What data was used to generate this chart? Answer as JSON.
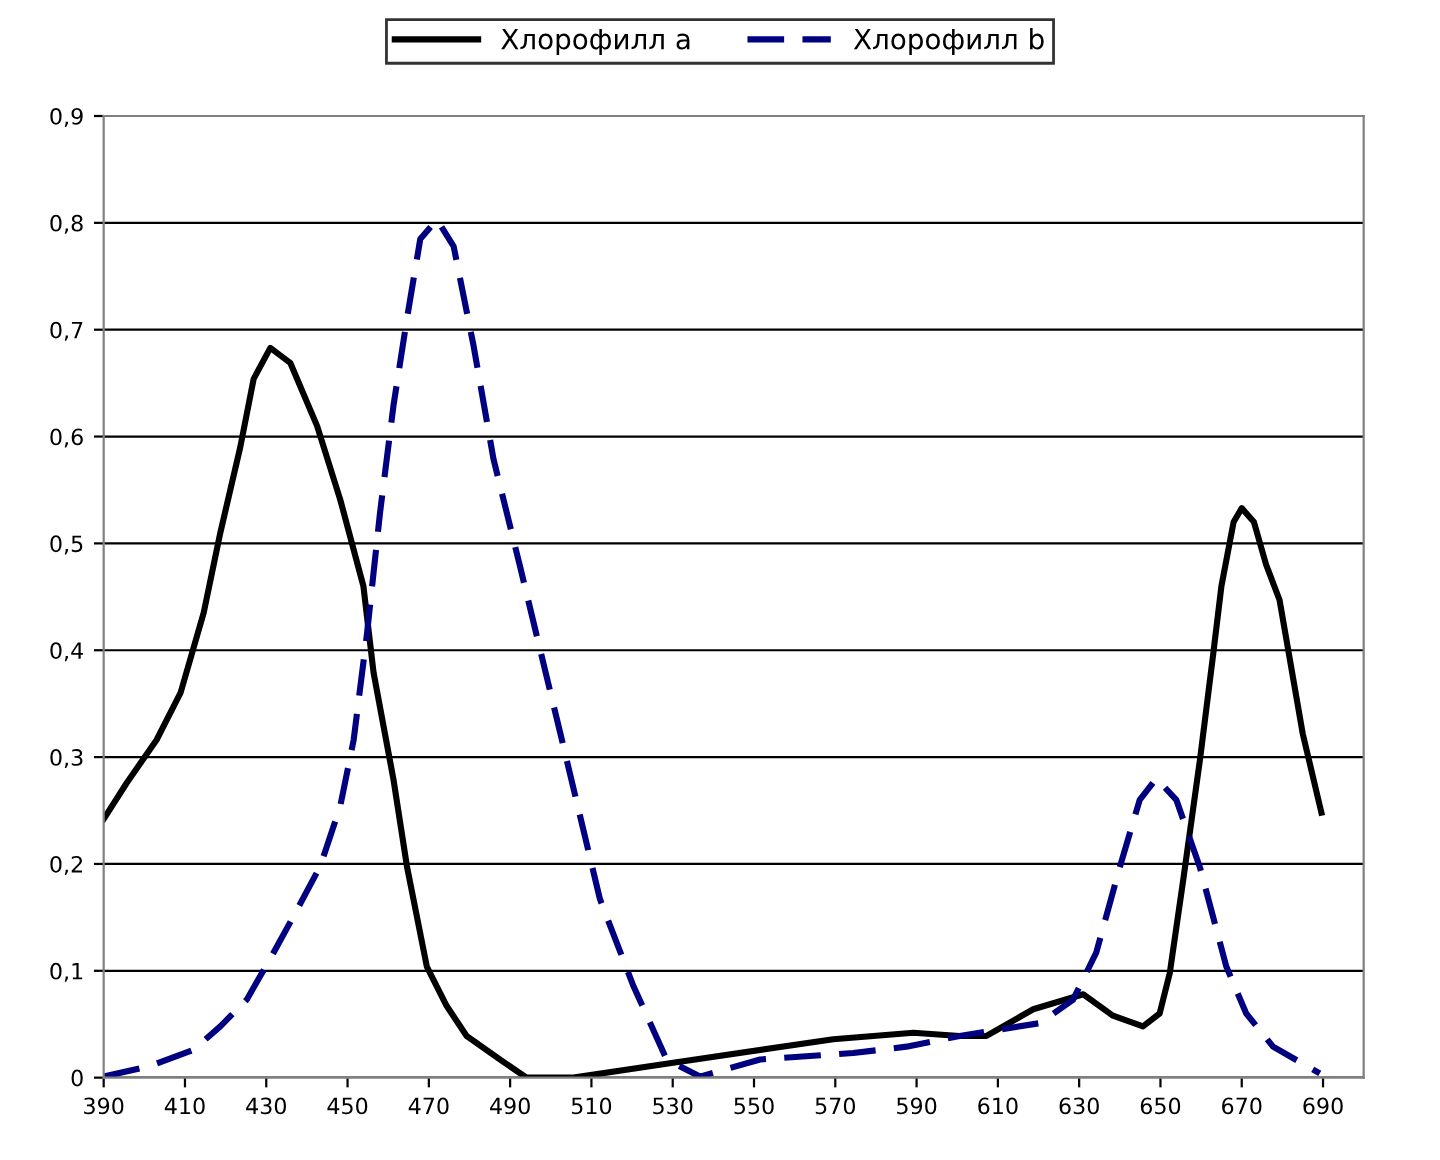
{
  "chart_data": {
    "type": "line",
    "legend": "top",
    "grid": "y",
    "marker": "none",
    "xlim": [
      390,
      700
    ],
    "xticks": [
      390,
      410,
      430,
      450,
      470,
      490,
      510,
      530,
      550,
      570,
      590,
      610,
      630,
      650,
      670,
      690
    ],
    "ylim": [
      0,
      0.9
    ],
    "yticks": [
      0,
      {
        "value": 0.1,
        "label": "0,1"
      },
      {
        "value": 0.2,
        "label": "0,2"
      },
      {
        "value": 0.3,
        "label": "0,3"
      },
      {
        "value": 0.4,
        "label": "0,4"
      },
      {
        "value": 0.5,
        "label": "0,5"
      },
      {
        "value": 0.6,
        "label": "0,6"
      },
      {
        "value": 0.7,
        "label": "0,7"
      },
      {
        "value": 0.8,
        "label": "0,8"
      },
      {
        "value": 0.9,
        "label": "0,9"
      }
    ],
    "series": [
      {
        "name": "Хлорофилл a",
        "color": "#000000",
        "line_style": "solid",
        "x": [
          390,
          395.7,
          403,
          408.9,
          414.6,
          418.7,
          423.6,
          426.9,
          431,
          435.9,
          442.5,
          448.2,
          453.9,
          456.4,
          461.3,
          464.6,
          469.5,
          474.4,
          479.3,
          487.5,
          494,
          505.6,
          530.1,
          569.5,
          589.2,
          600.6,
          607.2,
          618.7,
          631,
          638.3,
          645.7,
          649.8,
          652.3,
          655.6,
          659.7,
          663,
          665,
          668,
          670,
          673,
          676,
          679.3,
          685,
          689.6
        ],
        "values": [
          0.242,
          0.276,
          0.316,
          0.36,
          0.435,
          0.51,
          0.59,
          0.654,
          0.683,
          0.669,
          0.61,
          0.541,
          0.46,
          0.379,
          0.279,
          0.198,
          0.104,
          0.067,
          0.039,
          0.017,
          0.0,
          0.0,
          0.014,
          0.036,
          0.042,
          0.039,
          0.039,
          0.064,
          0.078,
          0.058,
          0.048,
          0.06,
          0.098,
          0.185,
          0.297,
          0.397,
          0.46,
          0.52,
          0.533,
          0.52,
          0.48,
          0.447,
          0.322,
          0.248
        ]
      },
      {
        "name": "Хлорофилл b",
        "color": "#000080",
        "line_style": "dashed",
        "x": [
          390,
          401.5,
          412.1,
          418.7,
          425.2,
          431.8,
          436.7,
          443.3,
          448.2,
          451.5,
          454.8,
          458,
          461.3,
          464.6,
          467.9,
          472,
          476.1,
          481,
          485.9,
          492.4,
          502.3,
          512.1,
          520.3,
          528.5,
          536.7,
          551.5,
          574.4,
          587.5,
          600.6,
          620.3,
          628.5,
          634.2,
          640,
          644.9,
          649,
          653.9,
          659.7,
          666.2,
          671.1,
          677.7,
          689.2
        ],
        "values": [
          0.001,
          0.011,
          0.026,
          0.048,
          0.073,
          0.117,
          0.151,
          0.198,
          0.254,
          0.316,
          0.416,
          0.529,
          0.629,
          0.71,
          0.785,
          0.803,
          0.778,
          0.685,
          0.579,
          0.479,
          0.323,
          0.167,
          0.086,
          0.017,
          0.001,
          0.017,
          0.023,
          0.029,
          0.039,
          0.051,
          0.073,
          0.117,
          0.197,
          0.26,
          0.28,
          0.26,
          0.197,
          0.104,
          0.06,
          0.029,
          0.004
        ]
      }
    ]
  }
}
